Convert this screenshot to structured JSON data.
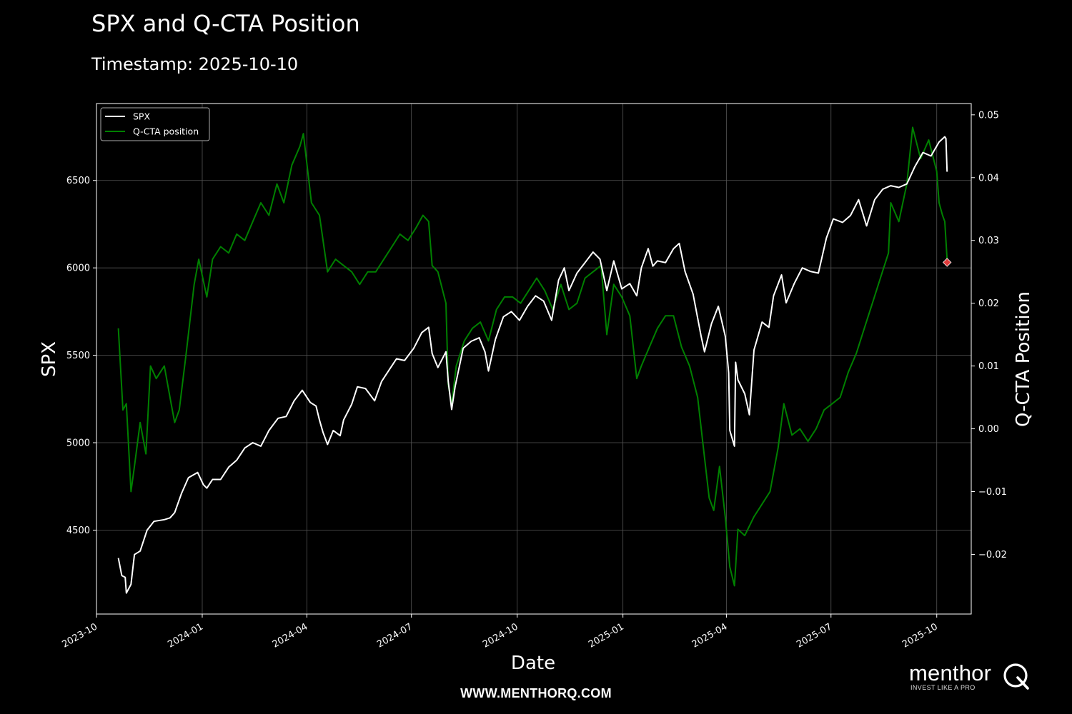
{
  "page": {
    "title": "SPX and Q-CTA Position",
    "subtitle": "Timestamp: 2025-10-10",
    "footer_url": "WWW.MENTHORQ.COM",
    "logo_text": "menthor",
    "logo_tagline": "INVEST LIKE A PRO"
  },
  "chart_data": {
    "type": "line",
    "xlabel": "Date",
    "ylabel": "SPX",
    "y2label": "Q-CTA Position",
    "x_range": [
      "2023-10-01",
      "2025-10-31"
    ],
    "ylim": [
      4020,
      6940
    ],
    "y2lim": [
      -0.0295,
      0.0518
    ],
    "x_ticks": [
      "2023-10",
      "2024-01",
      "2024-04",
      "2024-07",
      "2024-10",
      "2025-01",
      "2025-04",
      "2025-07",
      "2025-10"
    ],
    "y_ticks": [
      4500,
      5000,
      5500,
      6000,
      6500
    ],
    "y2_ticks": [
      -0.02,
      -0.01,
      0.0,
      0.01,
      0.02,
      0.03,
      0.04,
      0.05
    ],
    "y2_tick_labels": [
      "−0.02",
      "−0.01",
      "0.00",
      "0.01",
      "0.02",
      "0.03",
      "0.04",
      "0.05"
    ],
    "grid": true,
    "legend_position": "top-left",
    "colors": {
      "background": "#000000",
      "spx": "#ffffff",
      "qcta": "#008000",
      "marker": "#e03c3c",
      "grid": "#555555",
      "axis": "#ffffff"
    },
    "series": [
      {
        "name": "SPX",
        "axis": "left",
        "points": [
          [
            "2023-10-20",
            4340
          ],
          [
            "2023-10-23",
            4240
          ],
          [
            "2023-10-26",
            4230
          ],
          [
            "2023-10-27",
            4140
          ],
          [
            "2023-10-31",
            4190
          ],
          [
            "2023-11-03",
            4360
          ],
          [
            "2023-11-08",
            4380
          ],
          [
            "2023-11-14",
            4500
          ],
          [
            "2023-11-20",
            4550
          ],
          [
            "2023-11-29",
            4560
          ],
          [
            "2023-12-04",
            4570
          ],
          [
            "2023-12-08",
            4600
          ],
          [
            "2023-12-14",
            4710
          ],
          [
            "2023-12-20",
            4800
          ],
          [
            "2023-12-28",
            4830
          ],
          [
            "2024-01-02",
            4760
          ],
          [
            "2024-01-05",
            4740
          ],
          [
            "2024-01-10",
            4790
          ],
          [
            "2024-01-17",
            4790
          ],
          [
            "2024-01-24",
            4860
          ],
          [
            "2024-01-31",
            4900
          ],
          [
            "2024-02-07",
            4970
          ],
          [
            "2024-02-14",
            5000
          ],
          [
            "2024-02-21",
            4980
          ],
          [
            "2024-02-28",
            5070
          ],
          [
            "2024-03-07",
            5140
          ],
          [
            "2024-03-14",
            5150
          ],
          [
            "2024-03-21",
            5240
          ],
          [
            "2024-03-28",
            5300
          ],
          [
            "2024-04-04",
            5230
          ],
          [
            "2024-04-09",
            5210
          ],
          [
            "2024-04-12",
            5130
          ],
          [
            "2024-04-15",
            5060
          ],
          [
            "2024-04-19",
            4990
          ],
          [
            "2024-04-24",
            5070
          ],
          [
            "2024-04-30",
            5040
          ],
          [
            "2024-05-03",
            5130
          ],
          [
            "2024-05-10",
            5220
          ],
          [
            "2024-05-15",
            5320
          ],
          [
            "2024-05-22",
            5310
          ],
          [
            "2024-05-30",
            5240
          ],
          [
            "2024-06-05",
            5350
          ],
          [
            "2024-06-12",
            5420
          ],
          [
            "2024-06-18",
            5480
          ],
          [
            "2024-06-25",
            5470
          ],
          [
            "2024-07-03",
            5540
          ],
          [
            "2024-07-10",
            5630
          ],
          [
            "2024-07-16",
            5660
          ],
          [
            "2024-07-19",
            5510
          ],
          [
            "2024-07-24",
            5430
          ],
          [
            "2024-07-31",
            5520
          ],
          [
            "2024-08-02",
            5350
          ],
          [
            "2024-08-05",
            5190
          ],
          [
            "2024-08-08",
            5320
          ],
          [
            "2024-08-15",
            5540
          ],
          [
            "2024-08-22",
            5580
          ],
          [
            "2024-08-29",
            5600
          ],
          [
            "2024-09-03",
            5520
          ],
          [
            "2024-09-06",
            5410
          ],
          [
            "2024-09-12",
            5590
          ],
          [
            "2024-09-19",
            5720
          ],
          [
            "2024-09-26",
            5750
          ],
          [
            "2024-10-03",
            5700
          ],
          [
            "2024-10-10",
            5780
          ],
          [
            "2024-10-17",
            5840
          ],
          [
            "2024-10-24",
            5810
          ],
          [
            "2024-10-31",
            5700
          ],
          [
            "2024-11-06",
            5930
          ],
          [
            "2024-11-11",
            6000
          ],
          [
            "2024-11-15",
            5870
          ],
          [
            "2024-11-22",
            5970
          ],
          [
            "2024-11-29",
            6030
          ],
          [
            "2024-12-06",
            6090
          ],
          [
            "2024-12-12",
            6050
          ],
          [
            "2024-12-18",
            5870
          ],
          [
            "2024-12-24",
            6040
          ],
          [
            "2024-12-31",
            5880
          ],
          [
            "2025-01-07",
            5910
          ],
          [
            "2025-01-13",
            5840
          ],
          [
            "2025-01-17",
            6000
          ],
          [
            "2025-01-23",
            6110
          ],
          [
            "2025-01-27",
            6010
          ],
          [
            "2025-01-31",
            6040
          ],
          [
            "2025-02-07",
            6030
          ],
          [
            "2025-02-14",
            6110
          ],
          [
            "2025-02-19",
            6140
          ],
          [
            "2025-02-24",
            5980
          ],
          [
            "2025-03-03",
            5850
          ],
          [
            "2025-03-10",
            5610
          ],
          [
            "2025-03-13",
            5520
          ],
          [
            "2025-03-19",
            5680
          ],
          [
            "2025-03-25",
            5780
          ],
          [
            "2025-03-31",
            5610
          ],
          [
            "2025-04-03",
            5400
          ],
          [
            "2025-04-04",
            5070
          ],
          [
            "2025-04-08",
            4980
          ],
          [
            "2025-04-09",
            5460
          ],
          [
            "2025-04-11",
            5360
          ],
          [
            "2025-04-17",
            5280
          ],
          [
            "2025-04-21",
            5160
          ],
          [
            "2025-04-25",
            5530
          ],
          [
            "2025-05-02",
            5690
          ],
          [
            "2025-05-08",
            5660
          ],
          [
            "2025-05-12",
            5840
          ],
          [
            "2025-05-19",
            5960
          ],
          [
            "2025-05-23",
            5800
          ],
          [
            "2025-05-30",
            5910
          ],
          [
            "2025-06-06",
            6000
          ],
          [
            "2025-06-13",
            5980
          ],
          [
            "2025-06-20",
            5970
          ],
          [
            "2025-06-27",
            6170
          ],
          [
            "2025-07-03",
            6280
          ],
          [
            "2025-07-11",
            6260
          ],
          [
            "2025-07-18",
            6300
          ],
          [
            "2025-07-25",
            6390
          ],
          [
            "2025-08-01",
            6240
          ],
          [
            "2025-08-08",
            6390
          ],
          [
            "2025-08-15",
            6450
          ],
          [
            "2025-08-22",
            6470
          ],
          [
            "2025-08-29",
            6460
          ],
          [
            "2025-09-05",
            6480
          ],
          [
            "2025-09-12",
            6580
          ],
          [
            "2025-09-19",
            6660
          ],
          [
            "2025-09-26",
            6640
          ],
          [
            "2025-10-03",
            6720
          ],
          [
            "2025-10-08",
            6750
          ],
          [
            "2025-10-09",
            6740
          ],
          [
            "2025-10-10",
            6550
          ]
        ]
      },
      {
        "name": "Q-CTA position",
        "axis": "right",
        "points": [
          [
            "2023-10-20",
            0.016
          ],
          [
            "2023-10-24",
            0.003
          ],
          [
            "2023-10-27",
            0.004
          ],
          [
            "2023-10-31",
            -0.01
          ],
          [
            "2023-11-03",
            -0.006
          ],
          [
            "2023-11-08",
            0.001
          ],
          [
            "2023-11-13",
            -0.004
          ],
          [
            "2023-11-17",
            0.01
          ],
          [
            "2023-11-22",
            0.008
          ],
          [
            "2023-11-29",
            0.01
          ],
          [
            "2023-12-05",
            0.004
          ],
          [
            "2023-12-08",
            0.001
          ],
          [
            "2023-12-12",
            0.003
          ],
          [
            "2023-12-18",
            0.012
          ],
          [
            "2023-12-25",
            0.023
          ],
          [
            "2023-12-29",
            0.027
          ],
          [
            "2024-01-05",
            0.021
          ],
          [
            "2024-01-10",
            0.027
          ],
          [
            "2024-01-17",
            0.029
          ],
          [
            "2024-01-24",
            0.028
          ],
          [
            "2024-01-31",
            0.031
          ],
          [
            "2024-02-07",
            0.03
          ],
          [
            "2024-02-14",
            0.033
          ],
          [
            "2024-02-21",
            0.036
          ],
          [
            "2024-02-28",
            0.034
          ],
          [
            "2024-03-06",
            0.039
          ],
          [
            "2024-03-12",
            0.036
          ],
          [
            "2024-03-19",
            0.042
          ],
          [
            "2024-03-26",
            0.045
          ],
          [
            "2024-03-29",
            0.047
          ],
          [
            "2024-04-05",
            0.036
          ],
          [
            "2024-04-12",
            0.034
          ],
          [
            "2024-04-19",
            0.025
          ],
          [
            "2024-04-26",
            0.027
          ],
          [
            "2024-05-03",
            0.026
          ],
          [
            "2024-05-10",
            0.025
          ],
          [
            "2024-05-17",
            0.023
          ],
          [
            "2024-05-24",
            0.025
          ],
          [
            "2024-05-31",
            0.025
          ],
          [
            "2024-06-07",
            0.027
          ],
          [
            "2024-06-14",
            0.029
          ],
          [
            "2024-06-21",
            0.031
          ],
          [
            "2024-06-28",
            0.03
          ],
          [
            "2024-07-05",
            0.032
          ],
          [
            "2024-07-11",
            0.034
          ],
          [
            "2024-07-16",
            0.033
          ],
          [
            "2024-07-19",
            0.026
          ],
          [
            "2024-07-24",
            0.025
          ],
          [
            "2024-07-31",
            0.02
          ],
          [
            "2024-08-02",
            0.007
          ],
          [
            "2024-08-05",
            0.004
          ],
          [
            "2024-08-09",
            0.01
          ],
          [
            "2024-08-16",
            0.014
          ],
          [
            "2024-08-23",
            0.016
          ],
          [
            "2024-08-30",
            0.017
          ],
          [
            "2024-09-06",
            0.014
          ],
          [
            "2024-09-13",
            0.019
          ],
          [
            "2024-09-20",
            0.021
          ],
          [
            "2024-09-27",
            0.021
          ],
          [
            "2024-10-04",
            0.02
          ],
          [
            "2024-10-11",
            0.022
          ],
          [
            "2024-10-18",
            0.024
          ],
          [
            "2024-10-25",
            0.022
          ],
          [
            "2024-11-01",
            0.019
          ],
          [
            "2024-11-08",
            0.023
          ],
          [
            "2024-11-15",
            0.019
          ],
          [
            "2024-11-22",
            0.02
          ],
          [
            "2024-11-29",
            0.024
          ],
          [
            "2024-12-06",
            0.025
          ],
          [
            "2024-12-13",
            0.026
          ],
          [
            "2024-12-18",
            0.015
          ],
          [
            "2024-12-24",
            0.023
          ],
          [
            "2024-12-31",
            0.021
          ],
          [
            "2025-01-07",
            0.018
          ],
          [
            "2025-01-13",
            0.008
          ],
          [
            "2025-01-17",
            0.01
          ],
          [
            "2025-01-24",
            0.013
          ],
          [
            "2025-01-31",
            0.016
          ],
          [
            "2025-02-07",
            0.018
          ],
          [
            "2025-02-14",
            0.018
          ],
          [
            "2025-02-21",
            0.013
          ],
          [
            "2025-02-28",
            0.01
          ],
          [
            "2025-03-07",
            0.005
          ],
          [
            "2025-03-12",
            -0.003
          ],
          [
            "2025-03-17",
            -0.011
          ],
          [
            "2025-03-21",
            -0.013
          ],
          [
            "2025-03-26",
            -0.006
          ],
          [
            "2025-03-31",
            -0.014
          ],
          [
            "2025-04-04",
            -0.022
          ],
          [
            "2025-04-08",
            -0.025
          ],
          [
            "2025-04-11",
            -0.016
          ],
          [
            "2025-04-17",
            -0.017
          ],
          [
            "2025-04-25",
            -0.014
          ],
          [
            "2025-05-02",
            -0.012
          ],
          [
            "2025-05-09",
            -0.01
          ],
          [
            "2025-05-16",
            -0.003
          ],
          [
            "2025-05-21",
            0.004
          ],
          [
            "2025-05-28",
            -0.001
          ],
          [
            "2025-06-04",
            0.0
          ],
          [
            "2025-06-11",
            -0.002
          ],
          [
            "2025-06-18",
            0.0
          ],
          [
            "2025-06-25",
            0.003
          ],
          [
            "2025-07-02",
            0.004
          ],
          [
            "2025-07-09",
            0.005
          ],
          [
            "2025-07-16",
            0.009
          ],
          [
            "2025-07-23",
            0.012
          ],
          [
            "2025-07-30",
            0.016
          ],
          [
            "2025-08-06",
            0.02
          ],
          [
            "2025-08-13",
            0.024
          ],
          [
            "2025-08-20",
            0.028
          ],
          [
            "2025-08-22",
            0.036
          ],
          [
            "2025-08-29",
            0.033
          ],
          [
            "2025-09-05",
            0.039
          ],
          [
            "2025-09-10",
            0.048
          ],
          [
            "2025-09-17",
            0.043
          ],
          [
            "2025-09-24",
            0.046
          ],
          [
            "2025-10-01",
            0.041
          ],
          [
            "2025-10-03",
            0.036
          ],
          [
            "2025-10-06",
            0.034
          ],
          [
            "2025-10-08",
            0.033
          ],
          [
            "2025-10-10",
            0.027
          ]
        ]
      }
    ],
    "marker": {
      "date": "2025-10-10",
      "value": 0.0265,
      "axis": "right"
    }
  }
}
